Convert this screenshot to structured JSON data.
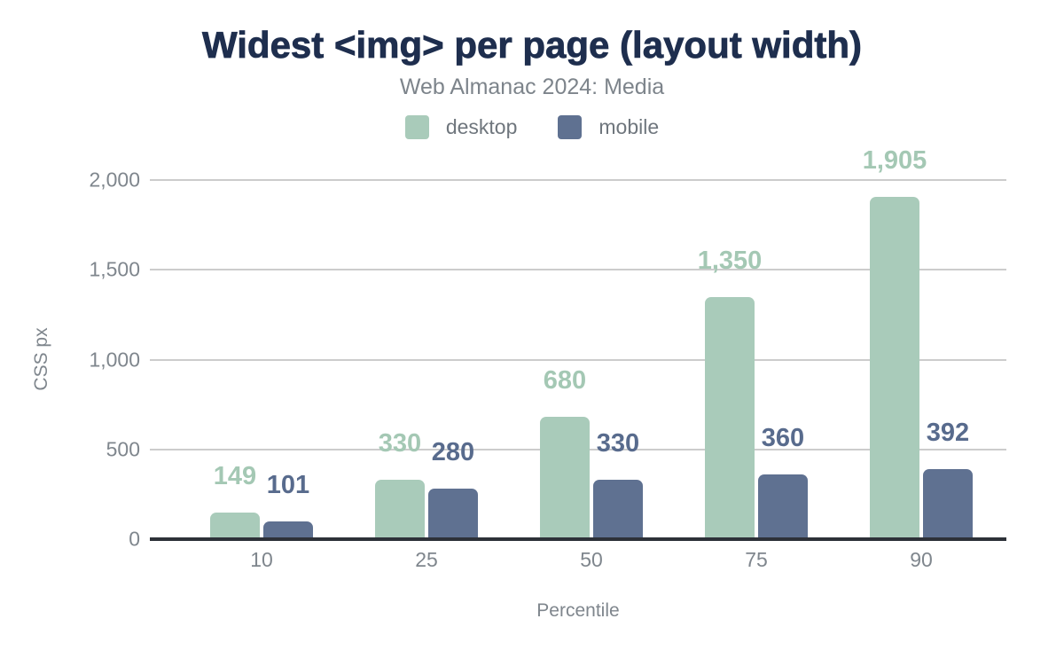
{
  "header": {
    "title": "Widest <img> per page (layout width)",
    "subtitle": "Web Almanac 2024: Media"
  },
  "legend": {
    "position": "top",
    "items": [
      {
        "label": "desktop",
        "color": "#a9cbba"
      },
      {
        "label": "mobile",
        "color": "#5f7191"
      }
    ]
  },
  "chart_data": {
    "type": "bar",
    "title": "Widest <img> per page (layout width)",
    "subtitle": "Web Almanac 2024: Media",
    "categories": [
      "10",
      "25",
      "50",
      "75",
      "90"
    ],
    "series": [
      {
        "name": "desktop",
        "color": "#a9cbba",
        "label_color": "#a4c8b4",
        "values": [
          149,
          330,
          680,
          1350,
          1905
        ],
        "labels": [
          "149",
          "330",
          "680",
          "1,350",
          "1,905"
        ]
      },
      {
        "name": "mobile",
        "color": "#5f7191",
        "label_color": "#586b8d",
        "values": [
          101,
          280,
          330,
          360,
          392
        ],
        "labels": [
          "101",
          "280",
          "330",
          "360",
          "392"
        ]
      }
    ],
    "xlabel": "Percentile",
    "ylabel": "CSS px",
    "ylim": [
      0,
      2000
    ],
    "yticks": [
      {
        "value": 0,
        "label": "0"
      },
      {
        "value": 500,
        "label": "500"
      },
      {
        "value": 1000,
        "label": "1,000"
      },
      {
        "value": 1500,
        "label": "1,500"
      },
      {
        "value": 2000,
        "label": "2,000"
      }
    ],
    "grid": true,
    "legend_position": "top",
    "colors": {
      "title": "#1e2e4e",
      "subtitle": "#7d848b",
      "axis_text": "#7f868d",
      "gridline": "#cccccc",
      "baseline": "#2d3138"
    }
  }
}
